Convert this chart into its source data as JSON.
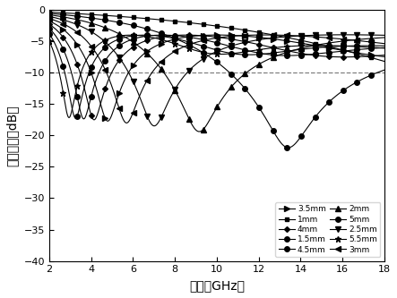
{
  "title": "",
  "xlabel": "频率（GHz）",
  "ylabel": "反射损耗（dB）",
  "xlim": [
    2,
    18
  ],
  "ylim": [
    -40,
    0
  ],
  "xticks": [
    2,
    4,
    6,
    8,
    10,
    12,
    14,
    16,
    18
  ],
  "yticks": [
    0,
    -5,
    -10,
    -15,
    -20,
    -25,
    -30,
    -35,
    -40
  ],
  "dashed_line_y": -10,
  "background_color": "#ffffff",
  "line_color": "#000000",
  "fontsize": 10,
  "figsize": [
    4.43,
    3.33
  ],
  "dpi": 100,
  "thickness_info": [
    {
      "d": 5.5,
      "label": "5.5mm",
      "marker": "*",
      "ms": 5,
      "col": 1
    },
    {
      "d": 5.0,
      "label": "5mm",
      "marker": "o",
      "ms": 4,
      "col": 1
    },
    {
      "d": 4.5,
      "label": "4.5mm",
      "marker": "o",
      "ms": 4,
      "col": 1
    },
    {
      "d": 4.0,
      "label": "4mm",
      "marker": "D",
      "ms": 3,
      "col": 1
    },
    {
      "d": 3.5,
      "label": "3.5mm",
      "marker": ">",
      "ms": 4,
      "col": 1
    },
    {
      "d": 3.0,
      "label": "3mm",
      "marker": "<",
      "ms": 4,
      "col": 2
    },
    {
      "d": 2.5,
      "label": "2.5mm",
      "marker": "v",
      "ms": 4,
      "col": 2
    },
    {
      "d": 2.0,
      "label": "2mm",
      "marker": "^",
      "ms": 4,
      "col": 2
    },
    {
      "d": 1.5,
      "label": "1.5mm",
      "marker": "o",
      "ms": 4,
      "col": 2
    },
    {
      "d": 1.0,
      "label": "1mm",
      "marker": "s",
      "ms": 3,
      "col": 2
    }
  ],
  "legend_col1": [
    "3.5mm",
    "4mm",
    "4.5mm",
    "5mm",
    "5.5mm"
  ],
  "legend_col2": [
    "1mm",
    "1.5mm",
    "2mm",
    "2.5mm",
    "3mm"
  ]
}
